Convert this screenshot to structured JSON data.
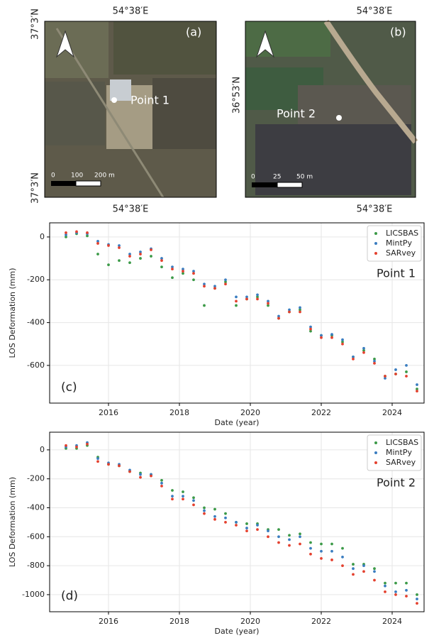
{
  "maps": [
    {
      "lon_top": "54°38′E",
      "lon_bottom": "54°38′E",
      "lat_top": "37°3′N",
      "lat_bottom": "37°3′N",
      "panel": "(a)",
      "point": "Point 1",
      "scale": [
        "0",
        "100",
        "200 m"
      ]
    },
    {
      "lon_top": "54°38′E",
      "lon_bottom": "54°38′E",
      "lat": "36°53′N",
      "panel": "(b)",
      "point": "Point 2",
      "scale": [
        "0",
        "25",
        "50 m"
      ]
    }
  ],
  "chart_data": [
    {
      "type": "scatter",
      "panel_label": "(c)",
      "annotation": "Point 1",
      "xlabel": "Date (year)",
      "ylabel": "LOS Deformation (mm)",
      "xlim": [
        2014.34,
        2024.9
      ],
      "xticks": [
        2016,
        2018,
        2020,
        2022,
        2024
      ],
      "ylim": [
        -776,
        66
      ],
      "yticks": [
        0,
        -200,
        -400,
        -600
      ],
      "grid": true,
      "legend": "upper right",
      "x": [
        2014.8,
        2015.1,
        2015.4,
        2015.7,
        2016.0,
        2016.3,
        2016.6,
        2016.9,
        2017.2,
        2017.5,
        2017.8,
        2018.1,
        2018.4,
        2018.7,
        2019.0,
        2019.3,
        2019.6,
        2019.9,
        2020.2,
        2020.5,
        2020.8,
        2021.1,
        2021.4,
        2021.7,
        2022.0,
        2022.3,
        2022.6,
        2022.9,
        2023.2,
        2023.5,
        2023.8,
        2024.1,
        2024.4,
        2024.7
      ],
      "series": [
        {
          "name": "LICSBAS",
          "color": "#3c9a48",
          "values": [
            0,
            15,
            5,
            -80,
            -130,
            -110,
            -120,
            -100,
            -90,
            -140,
            -190,
            -170,
            -200,
            -320,
            -240,
            -210,
            -320,
            -290,
            -280,
            -320,
            -380,
            -350,
            -340,
            -440,
            -460,
            -460,
            -490,
            -560,
            -530,
            -570,
            -650,
            -640,
            -630,
            -710
          ]
        },
        {
          "name": "MintPy",
          "color": "#3a7dc0",
          "values": [
            10,
            20,
            15,
            -20,
            -35,
            -40,
            -80,
            -70,
            -55,
            -100,
            -140,
            -150,
            -160,
            -220,
            -230,
            -200,
            -280,
            -280,
            -270,
            -300,
            -370,
            -340,
            -330,
            -420,
            -460,
            -455,
            -480,
            -560,
            -520,
            -580,
            -660,
            -620,
            -600,
            -690
          ]
        },
        {
          "name": "SARvey",
          "color": "#e4412f",
          "values": [
            20,
            25,
            20,
            -30,
            -40,
            -50,
            -90,
            -80,
            -60,
            -110,
            -150,
            -160,
            -170,
            -230,
            -240,
            -220,
            -300,
            -290,
            -290,
            -310,
            -380,
            -350,
            -350,
            -430,
            -470,
            -470,
            -500,
            -570,
            -540,
            -590,
            -650,
            -640,
            -650,
            -720
          ]
        }
      ]
    },
    {
      "type": "scatter",
      "panel_label": "(d)",
      "annotation": "Point 2",
      "xlabel": "Date (year)",
      "ylabel": "LOS Deformation (mm)",
      "xlim": [
        2014.34,
        2024.9
      ],
      "xticks": [
        2016,
        2018,
        2020,
        2022,
        2024
      ],
      "ylim": [
        -1118,
        122
      ],
      "yticks": [
        0,
        -200,
        -400,
        -600,
        -800,
        -1000
      ],
      "grid": true,
      "legend": "upper right",
      "x": [
        2014.8,
        2015.1,
        2015.4,
        2015.7,
        2016.0,
        2016.3,
        2016.6,
        2016.9,
        2017.2,
        2017.5,
        2017.8,
        2018.1,
        2018.4,
        2018.7,
        2019.0,
        2019.3,
        2019.6,
        2019.9,
        2020.2,
        2020.5,
        2020.8,
        2021.1,
        2021.4,
        2021.7,
        2022.0,
        2022.3,
        2022.6,
        2022.9,
        2023.2,
        2023.5,
        2023.8,
        2024.1,
        2024.4,
        2024.7
      ],
      "series": [
        {
          "name": "LICSBAS",
          "color": "#3c9a48",
          "values": [
            10,
            10,
            30,
            -50,
            -100,
            -110,
            -150,
            -160,
            -170,
            -210,
            -280,
            -290,
            -330,
            -400,
            -410,
            -440,
            -500,
            -510,
            -510,
            -550,
            -550,
            -590,
            -580,
            -640,
            -650,
            -650,
            -680,
            -790,
            -790,
            -820,
            -920,
            -920,
            -920,
            -1000
          ]
        },
        {
          "name": "MintPy",
          "color": "#3a7dc0",
          "values": [
            20,
            30,
            50,
            -60,
            -90,
            -100,
            -140,
            -170,
            -170,
            -230,
            -320,
            -320,
            -350,
            -420,
            -460,
            -470,
            -500,
            -540,
            -520,
            -560,
            -600,
            -620,
            -600,
            -680,
            -700,
            -700,
            -740,
            -820,
            -800,
            -840,
            -940,
            -980,
            -970,
            -1030
          ]
        },
        {
          "name": "SARvey",
          "color": "#e4412f",
          "values": [
            30,
            20,
            40,
            -80,
            -100,
            -110,
            -150,
            -190,
            -180,
            -250,
            -340,
            -340,
            -380,
            -440,
            -480,
            -500,
            -520,
            -560,
            -550,
            -600,
            -640,
            -660,
            -650,
            -720,
            -750,
            -760,
            -800,
            -860,
            -840,
            -900,
            -980,
            -1000,
            -1010,
            -1060
          ]
        }
      ]
    }
  ]
}
